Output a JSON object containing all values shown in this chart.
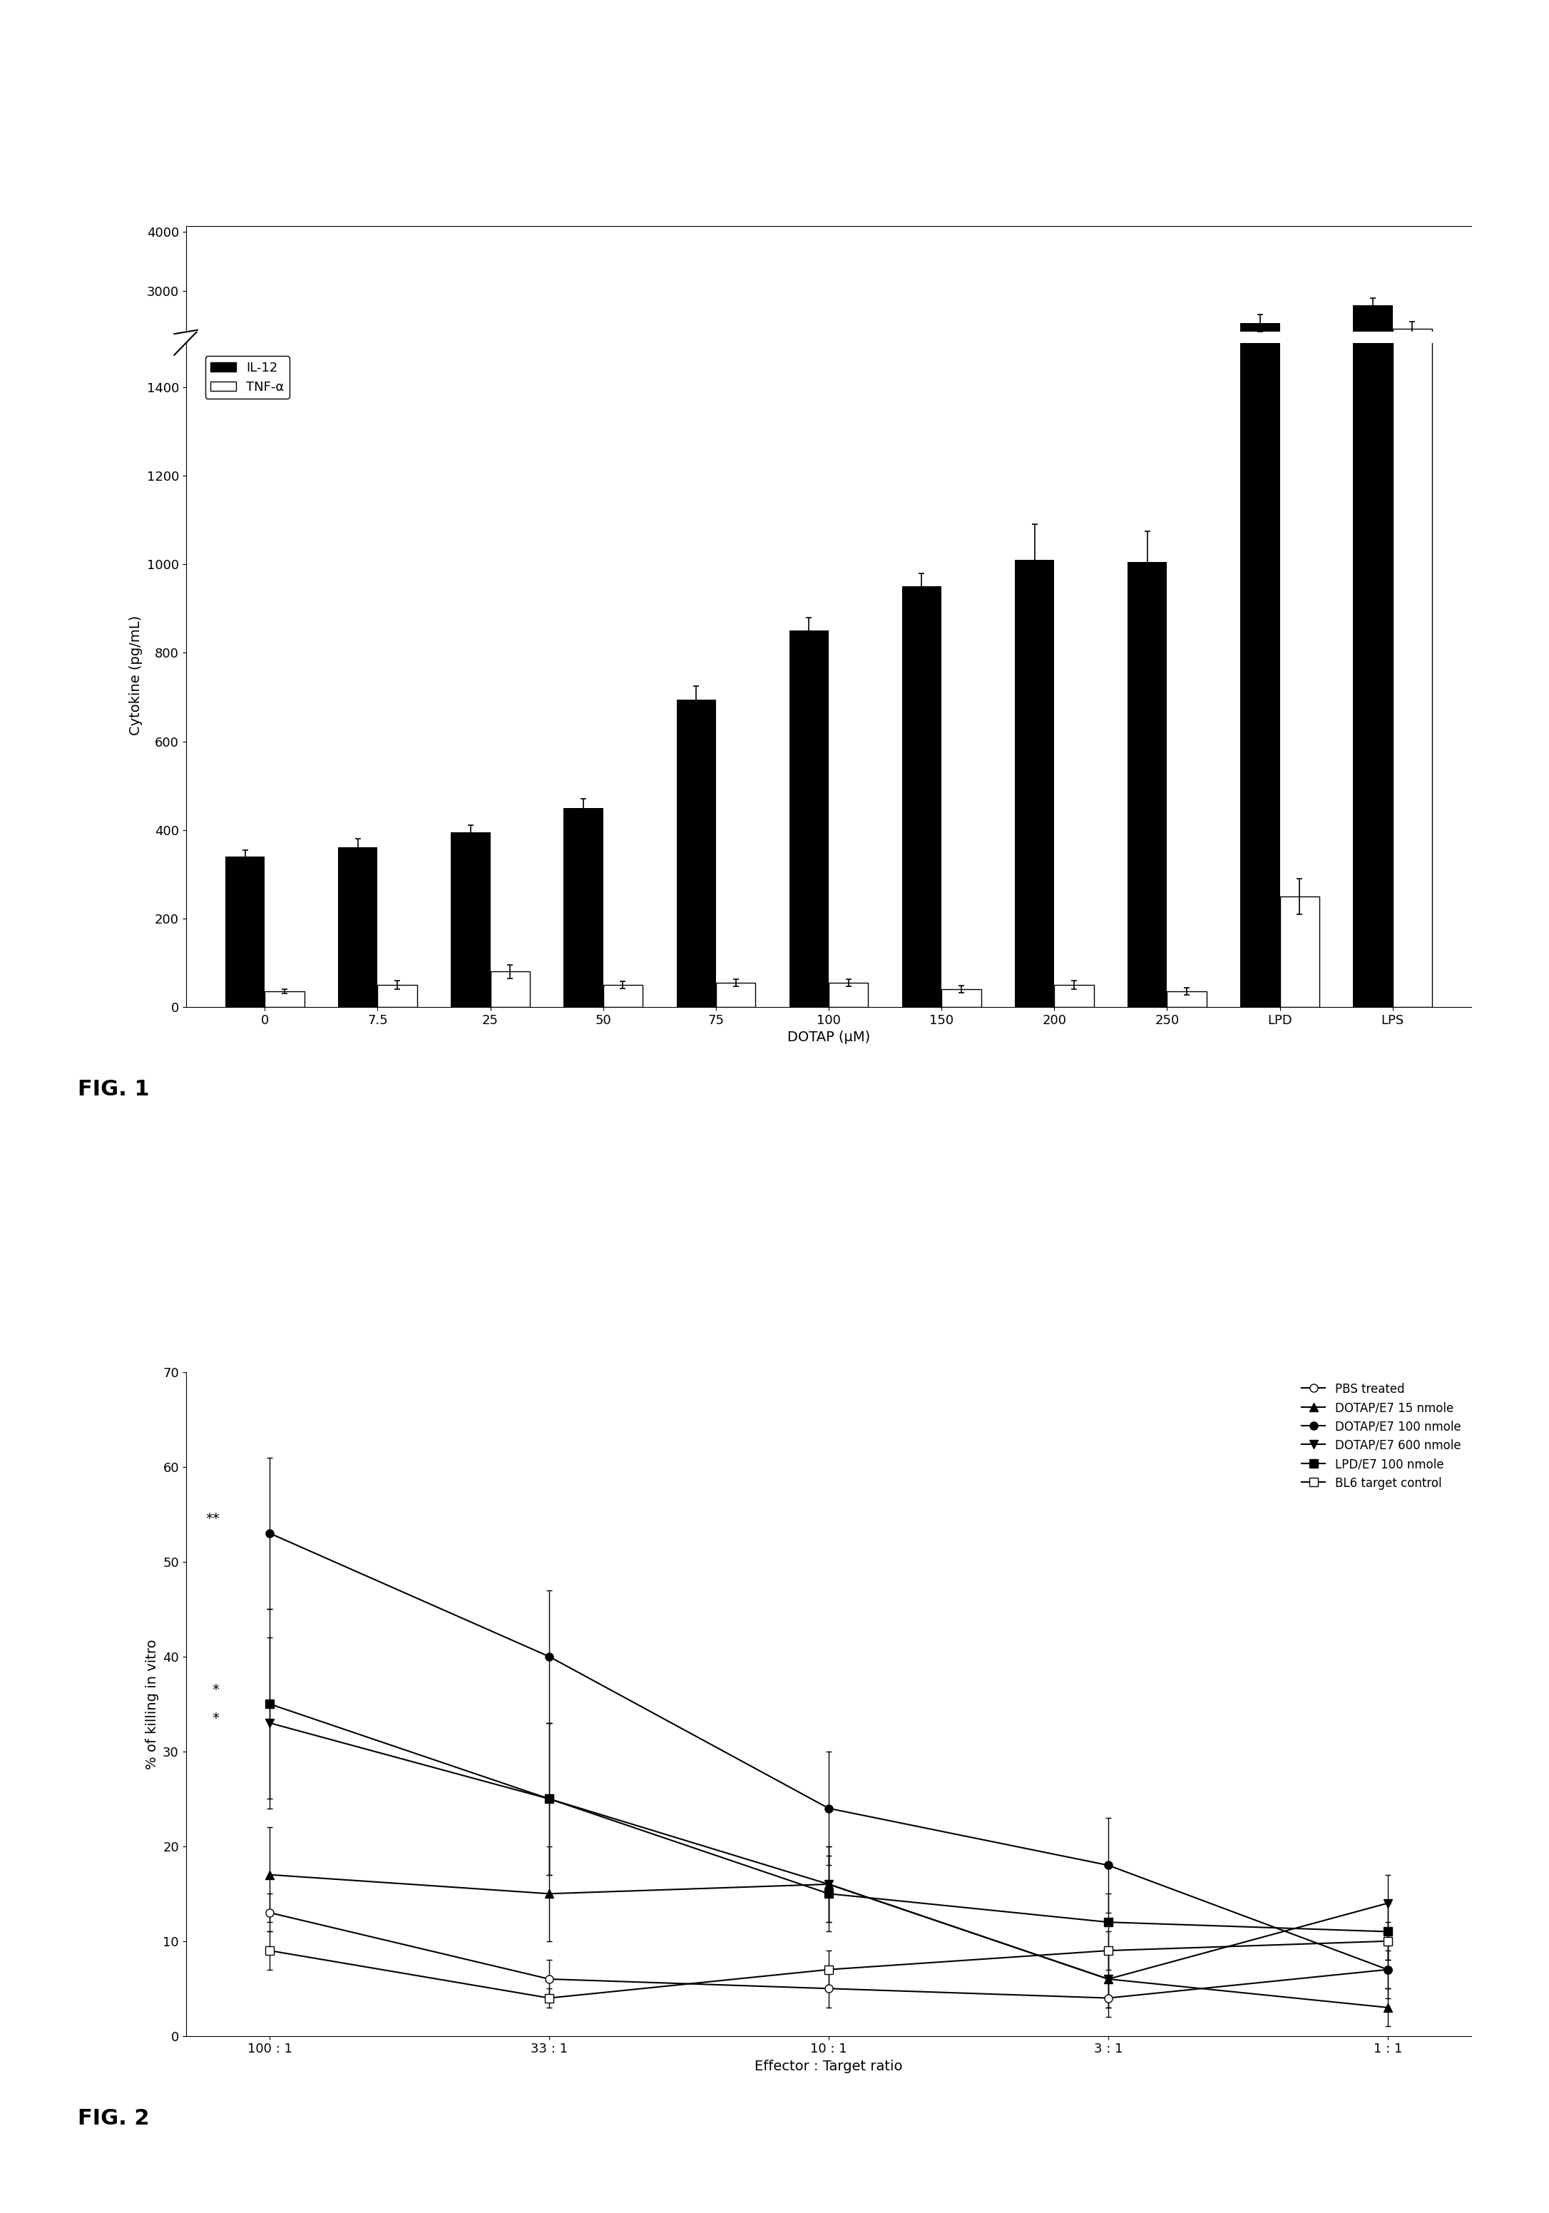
{
  "fig1": {
    "categories": [
      "0",
      "7.5",
      "25",
      "50",
      "75",
      "100",
      "150",
      "200",
      "250",
      "LPD",
      "LPS"
    ],
    "IL12_values": [
      340,
      360,
      395,
      450,
      695,
      850,
      950,
      1010,
      1005,
      2450,
      2750
    ],
    "IL12_errors": [
      15,
      20,
      15,
      20,
      30,
      30,
      30,
      80,
      70,
      150,
      120
    ],
    "TNF_values": [
      35,
      50,
      80,
      50,
      55,
      55,
      40,
      50,
      35,
      250,
      2350
    ],
    "TNF_errors": [
      5,
      10,
      15,
      8,
      8,
      8,
      8,
      10,
      8,
      40,
      130
    ],
    "ylabel": "Cytokine (pg/mL)",
    "xlabel": "DOTAP (μM)",
    "ylim_lower": [
      0,
      1500
    ],
    "ylim_upper": [
      2300,
      4100
    ],
    "yticks_lower": [
      0,
      200,
      400,
      600,
      800,
      1000,
      1200,
      1400
    ],
    "yticks_upper": [
      3000,
      4000
    ],
    "legend_IL12": "IL-12",
    "legend_TNF": "TNF-α",
    "fig_label": "FIG. 1",
    "bar_width": 0.35
  },
  "fig2": {
    "x_labels": [
      "100 : 1",
      "33 : 1",
      "10 : 1",
      "3 : 1",
      "1 : 1"
    ],
    "x_vals": [
      0,
      1,
      2,
      3,
      4
    ],
    "series": {
      "PBS treated": {
        "values": [
          13,
          6,
          5,
          4,
          7
        ],
        "errors": [
          2,
          2,
          2,
          2,
          2
        ],
        "marker": "o",
        "fillstyle": "none",
        "linestyle": "-",
        "linewidth": 1.5,
        "markersize": 8
      },
      "DOTAP/E7 15 nmole": {
        "values": [
          17,
          15,
          16,
          6,
          3
        ],
        "errors": [
          5,
          5,
          4,
          3,
          2
        ],
        "marker": "^",
        "fillstyle": "full",
        "linestyle": "-",
        "linewidth": 1.5,
        "markersize": 8
      },
      "DOTAP/E7 100 nmole": {
        "values": [
          53,
          40,
          24,
          18,
          7
        ],
        "errors": [
          8,
          7,
          6,
          5,
          3
        ],
        "marker": "o",
        "fillstyle": "full",
        "linestyle": "-",
        "linewidth": 1.5,
        "markersize": 8
      },
      "DOTAP/E7 600 nmole": {
        "values": [
          33,
          25,
          16,
          6,
          14
        ],
        "errors": [
          9,
          8,
          4,
          3,
          3
        ],
        "marker": "v",
        "fillstyle": "full",
        "linestyle": "-",
        "linewidth": 1.5,
        "markersize": 8
      },
      "LPD/E7 100 nmole": {
        "values": [
          35,
          25,
          15,
          12,
          11
        ],
        "errors": [
          10,
          8,
          4,
          3,
          3
        ],
        "marker": "s",
        "fillstyle": "full",
        "linestyle": "-",
        "linewidth": 1.5,
        "markersize": 8
      },
      "BL6 target control": {
        "values": [
          9,
          4,
          7,
          9,
          10
        ],
        "errors": [
          2,
          1,
          2,
          2,
          2
        ],
        "marker": "s",
        "fillstyle": "none",
        "linestyle": "-",
        "linewidth": 1.5,
        "markersize": 8
      }
    },
    "ylabel": "% of killing in vitro",
    "xlabel": "Effector : Target ratio",
    "ylim": [
      0,
      70
    ],
    "yticks": [
      0,
      10,
      20,
      30,
      40,
      50,
      60,
      70
    ],
    "fig_label": "FIG. 2"
  },
  "background_color": "#ffffff"
}
